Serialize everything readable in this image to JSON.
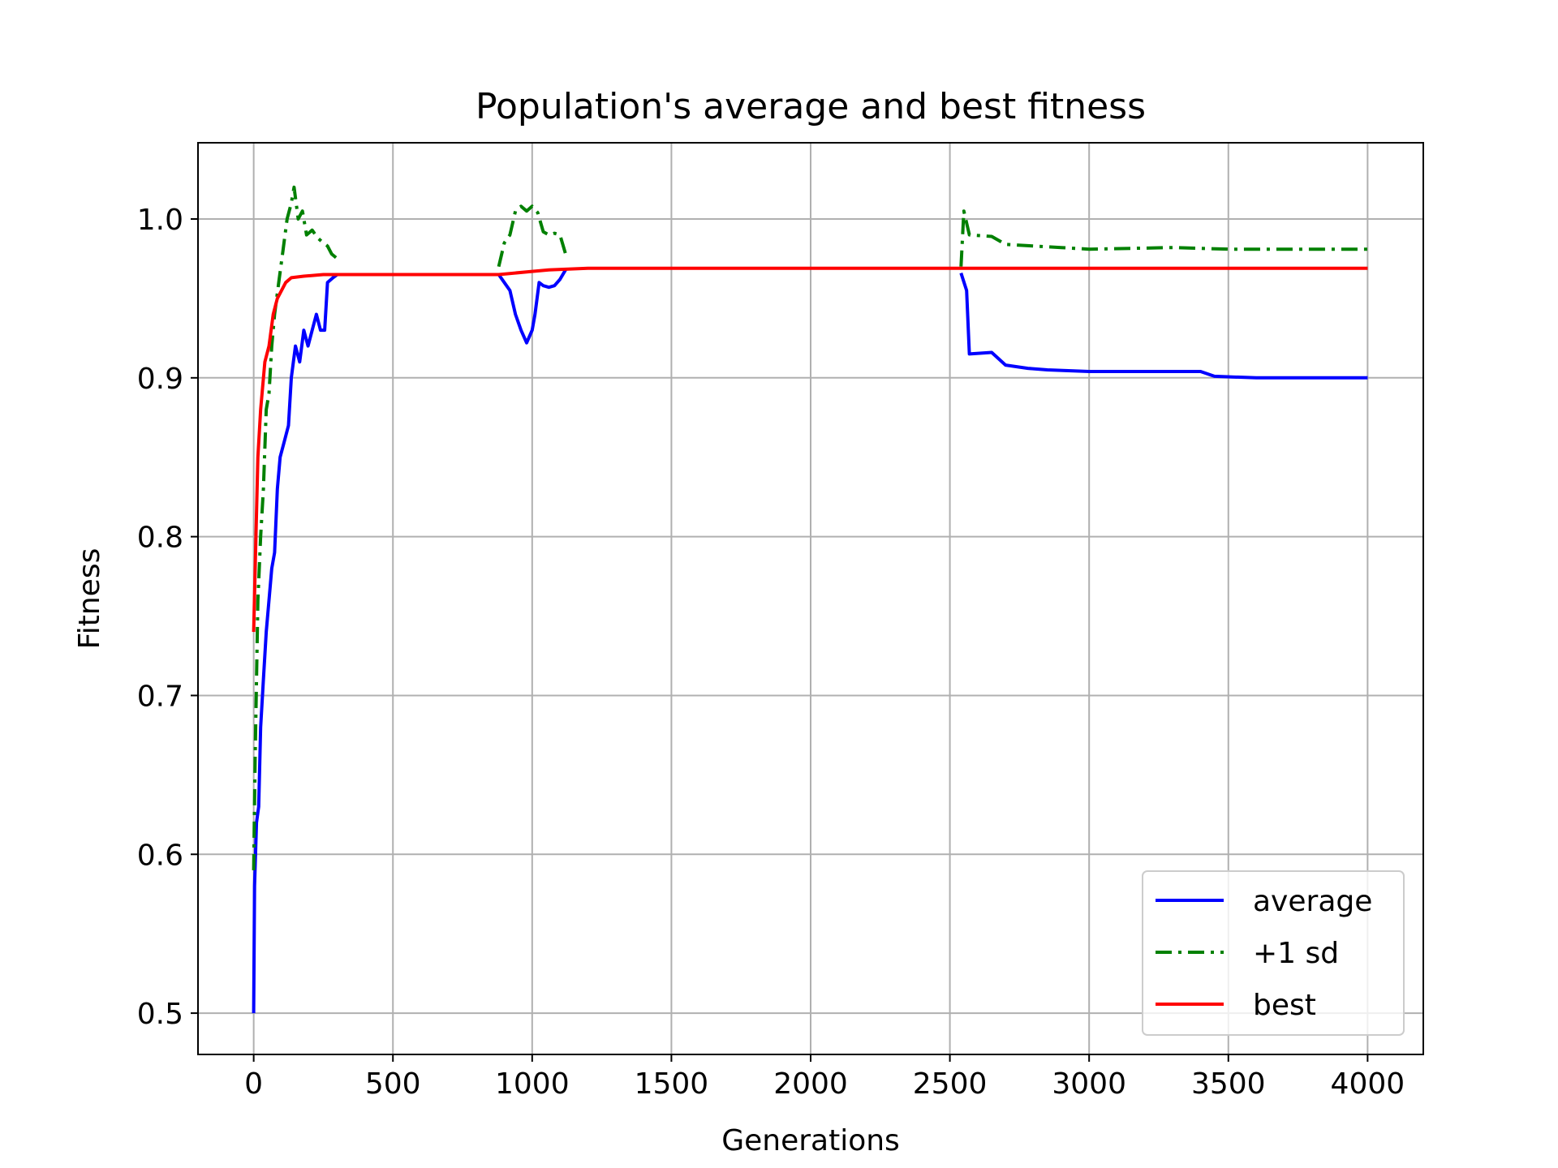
{
  "chart_data": {
    "type": "line",
    "title": "Population's average and best fitness",
    "xlabel": "Generations",
    "ylabel": "Fitness",
    "xlim": [
      -200,
      4200
    ],
    "ylim": [
      0.474,
      1.048
    ],
    "xticks": [
      0,
      500,
      1000,
      1500,
      2000,
      2500,
      3000,
      3500,
      4000
    ],
    "xtick_labels": [
      "0",
      "500",
      "1000",
      "1500",
      "2000",
      "2500",
      "3000",
      "3500",
      "4000"
    ],
    "yticks": [
      0.5,
      0.6,
      0.7,
      0.8,
      0.9,
      1.0
    ],
    "ytick_labels": [
      "0.5",
      "0.6",
      "0.7",
      "0.8",
      "0.9",
      "1.0"
    ],
    "grid": true,
    "legend_position": "lower-right",
    "series": [
      {
        "name": "average",
        "color": "#0000ff",
        "style": "solid",
        "segments": [
          [
            [
              0,
              0.5
            ],
            [
              3,
              0.58
            ],
            [
              10,
              0.62
            ],
            [
              18,
              0.63
            ],
            [
              25,
              0.68
            ],
            [
              35,
              0.71
            ],
            [
              45,
              0.74
            ],
            [
              55,
              0.76
            ],
            [
              65,
              0.78
            ],
            [
              75,
              0.79
            ],
            [
              85,
              0.83
            ],
            [
              95,
              0.85
            ],
            [
              110,
              0.86
            ],
            [
              125,
              0.87
            ],
            [
              135,
              0.9
            ],
            [
              150,
              0.92
            ],
            [
              165,
              0.91
            ],
            [
              180,
              0.93
            ],
            [
              195,
              0.92
            ],
            [
              210,
              0.93
            ],
            [
              225,
              0.94
            ],
            [
              240,
              0.93
            ],
            [
              255,
              0.93
            ],
            [
              265,
              0.96
            ],
            [
              285,
              0.963
            ],
            [
              300,
              0.965
            ]
          ],
          [
            [
              880,
              0.965
            ],
            [
              900,
              0.96
            ],
            [
              920,
              0.955
            ],
            [
              940,
              0.94
            ],
            [
              960,
              0.93
            ],
            [
              980,
              0.922
            ],
            [
              1000,
              0.93
            ],
            [
              1010,
              0.94
            ],
            [
              1025,
              0.96
            ],
            [
              1040,
              0.958
            ],
            [
              1060,
              0.957
            ],
            [
              1080,
              0.958
            ],
            [
              1100,
              0.962
            ],
            [
              1120,
              0.968
            ]
          ],
          [
            [
              2540,
              0.966
            ],
            [
              2560,
              0.955
            ],
            [
              2570,
              0.915
            ],
            [
              2650,
              0.916
            ],
            [
              2700,
              0.908
            ],
            [
              2780,
              0.906
            ],
            [
              2850,
              0.905
            ],
            [
              3000,
              0.904
            ],
            [
              3200,
              0.904
            ],
            [
              3400,
              0.904
            ],
            [
              3450,
              0.901
            ],
            [
              3600,
              0.9
            ],
            [
              4000,
              0.9
            ]
          ]
        ]
      },
      {
        "name": "+1 sd",
        "color": "#008000",
        "style": "dashdot",
        "segments": [
          [
            [
              0,
              0.59
            ],
            [
              5,
              0.66
            ],
            [
              15,
              0.76
            ],
            [
              25,
              0.8
            ],
            [
              35,
              0.83
            ],
            [
              45,
              0.88
            ],
            [
              55,
              0.89
            ],
            [
              65,
              0.92
            ],
            [
              75,
              0.94
            ],
            [
              90,
              0.96
            ],
            [
              105,
              0.98
            ],
            [
              120,
              1.0
            ],
            [
              135,
              1.01
            ],
            [
              145,
              1.02
            ],
            [
              160,
              1.0
            ],
            [
              175,
              1.005
            ],
            [
              190,
              0.99
            ],
            [
              210,
              0.993
            ],
            [
              230,
              0.988
            ],
            [
              250,
              0.985
            ],
            [
              265,
              0.983
            ],
            [
              280,
              0.978
            ],
            [
              300,
              0.975
            ]
          ],
          [
            [
              880,
              0.97
            ],
            [
              900,
              0.985
            ],
            [
              920,
              0.99
            ],
            [
              940,
              1.005
            ],
            [
              960,
              1.008
            ],
            [
              980,
              1.005
            ],
            [
              1000,
              1.008
            ],
            [
              1020,
              1.004
            ],
            [
              1040,
              0.992
            ],
            [
              1060,
              0.99
            ],
            [
              1080,
              0.991
            ],
            [
              1100,
              0.99
            ],
            [
              1120,
              0.978
            ]
          ],
          [
            [
              2540,
              0.97
            ],
            [
              2550,
              1.005
            ],
            [
              2570,
              0.99
            ],
            [
              2650,
              0.989
            ],
            [
              2700,
              0.984
            ],
            [
              2800,
              0.983
            ],
            [
              2900,
              0.982
            ],
            [
              3000,
              0.981
            ],
            [
              3300,
              0.982
            ],
            [
              3500,
              0.981
            ],
            [
              4000,
              0.981
            ]
          ]
        ]
      },
      {
        "name": "best",
        "color": "#ff0000",
        "style": "solid",
        "segments": [
          [
            [
              0,
              0.74
            ],
            [
              8,
              0.8
            ],
            [
              15,
              0.85
            ],
            [
              25,
              0.88
            ],
            [
              40,
              0.91
            ],
            [
              55,
              0.92
            ],
            [
              70,
              0.94
            ],
            [
              85,
              0.95
            ],
            [
              100,
              0.955
            ],
            [
              115,
              0.96
            ],
            [
              135,
              0.963
            ],
            [
              180,
              0.964
            ],
            [
              250,
              0.965
            ],
            [
              500,
              0.965
            ],
            [
              880,
              0.965
            ],
            [
              1000,
              0.967
            ],
            [
              1060,
              0.968
            ],
            [
              1200,
              0.969
            ],
            [
              2000,
              0.969
            ],
            [
              3000,
              0.969
            ],
            [
              4000,
              0.969
            ]
          ]
        ]
      }
    ]
  }
}
